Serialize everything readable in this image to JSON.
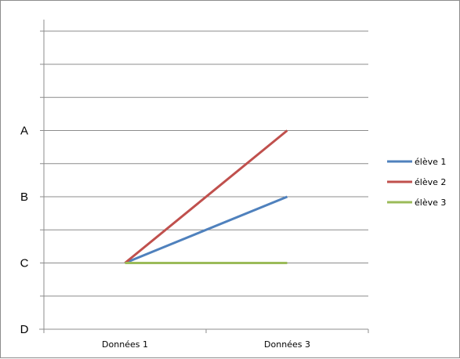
{
  "chart_data": {
    "type": "line",
    "categories": [
      "Données 1",
      "Données 3"
    ],
    "y_levels": [
      "D",
      "C",
      "B",
      "A"
    ],
    "ylim": [
      0,
      4
    ],
    "grid": true,
    "legend_position": "right",
    "series": [
      {
        "name": "élève 1",
        "values": [
          1,
          2
        ],
        "color": "#4f81bd"
      },
      {
        "name": "élève 2",
        "values": [
          1,
          3
        ],
        "color": "#c0504d"
      },
      {
        "name": "élève 3",
        "values": [
          1,
          1
        ],
        "color": "#9bbb59"
      }
    ]
  }
}
